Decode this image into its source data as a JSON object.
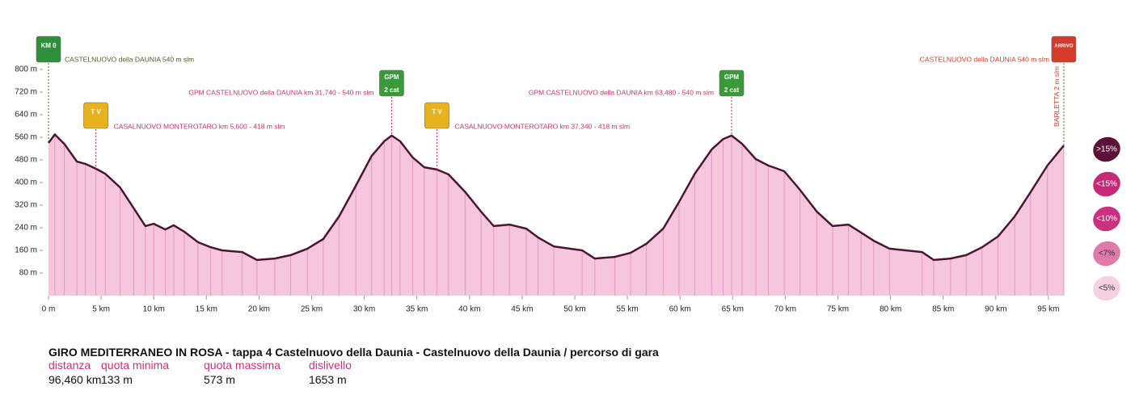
{
  "chart_data": {
    "type": "area",
    "x": [
      0,
      0.6,
      1.5,
      2.7,
      3.5,
      4.5,
      5.4,
      6.8,
      8.1,
      9.2,
      10,
      11.1,
      11.9,
      12.9,
      14.2,
      15.4,
      16.5,
      18.4,
      19.8,
      21.5,
      23,
      24.6,
      26.1,
      27.6,
      29.2,
      30.7,
      31.9,
      32.6,
      33.4,
      34.6,
      35.7,
      36.9,
      38,
      39.6,
      41.1,
      42.3,
      43.8,
      45.4,
      46.5,
      48,
      50.7,
      51.9,
      53.8,
      55.3,
      56.8,
      58.4,
      59.9,
      61.4,
      63,
      64.1,
      64.9,
      65.9,
      67.2,
      68.4,
      69.9,
      71.4,
      73,
      74.5,
      76,
      77.2,
      78.4,
      79.9,
      83,
      84.1,
      85.7,
      87.2,
      88.7,
      90.2,
      91.8,
      93.3,
      94.9,
      96.46
    ],
    "values": [
      540,
      570,
      537,
      474,
      466,
      449,
      431,
      383,
      309,
      246,
      254,
      234,
      249,
      226,
      189,
      171,
      160,
      154,
      126,
      131,
      143,
      166,
      200,
      280,
      389,
      494,
      546,
      566,
      546,
      489,
      454,
      446,
      429,
      366,
      297,
      246,
      251,
      237,
      206,
      174,
      160,
      131,
      137,
      151,
      183,
      237,
      331,
      431,
      517,
      554,
      566,
      537,
      483,
      460,
      440,
      374,
      297,
      246,
      251,
      223,
      194,
      166,
      154,
      126,
      131,
      143,
      171,
      209,
      280,
      366,
      460,
      531
    ],
    "fill": "#f5c6dc",
    "line_color": "#4a1632",
    "xlim": [
      0,
      96.46
    ],
    "ylim": [
      0,
      800
    ],
    "xticks": [
      {
        "value": 0,
        "label": "0 m"
      },
      {
        "value": 5,
        "label": "5 km"
      },
      {
        "value": 10,
        "label": "10 km"
      },
      {
        "value": 15,
        "label": "15 km"
      },
      {
        "value": 20,
        "label": "20 km"
      },
      {
        "value": 25,
        "label": "25 km"
      },
      {
        "value": 30,
        "label": "30 km"
      },
      {
        "value": 35,
        "label": "35 km"
      },
      {
        "value": 40,
        "label": "40 km"
      },
      {
        "value": 45,
        "label": "45 km"
      },
      {
        "value": 50,
        "label": "50 km"
      },
      {
        "value": 55,
        "label": "55 km"
      },
      {
        "value": 60,
        "label": "60 km"
      },
      {
        "value": 65,
        "label": "65 km"
      },
      {
        "value": 70,
        "label": "70 km"
      },
      {
        "value": 75,
        "label": "75 km"
      },
      {
        "value": 80,
        "label": "80 km"
      },
      {
        "value": 85,
        "label": "85 km"
      },
      {
        "value": 90,
        "label": "90 km"
      },
      {
        "value": 95,
        "label": "95 km"
      }
    ],
    "yticks": [
      {
        "value": 80,
        "label": "80 m"
      },
      {
        "value": 160,
        "label": "160 m"
      },
      {
        "value": 240,
        "label": "240 m"
      },
      {
        "value": 320,
        "label": "320 m"
      },
      {
        "value": 400,
        "label": "400 m"
      },
      {
        "value": 480,
        "label": "480 m"
      },
      {
        "value": 560,
        "label": "560 m"
      },
      {
        "value": 640,
        "label": "640 m"
      },
      {
        "value": 720,
        "label": "720 m"
      },
      {
        "value": 800,
        "label": "800 m"
      }
    ],
    "annotations": [
      {
        "kind": "start",
        "x": 0,
        "badge": "KM 0",
        "badge_color": "#2f8f3a",
        "text": "CASTELNUOVO della DAUNIA 540 m slm",
        "color": "#4d5a2a"
      },
      {
        "kind": "sprint",
        "x": 4.5,
        "badge": "T V",
        "badge_color": "#e6b31e",
        "text": "CASALNUOVO MONTEROTARO km 5,600 - 418 m slm",
        "color": "#d0306a"
      },
      {
        "kind": "gpm",
        "x": 32.6,
        "badge": "GPM",
        "badge2": "2 cat",
        "badge_color": "#3a9a3a",
        "text": "GPM CASTELNUOVO della DAUNIA km 31,740 - 540 m slm",
        "color": "#d0306a"
      },
      {
        "kind": "sprint",
        "x": 36.9,
        "badge": "T V",
        "badge_color": "#e6b31e",
        "text": "CASALNUOVO MONTEROTARO km 37,340 - 418 m slm",
        "color": "#d0306a"
      },
      {
        "kind": "gpm",
        "x": 64.9,
        "badge": "GPM",
        "badge2": "2 cat",
        "badge_color": "#3a9a3a",
        "text": "GPM CASTELNUOVO della DAUNIA km 63,480 - 540 m slm",
        "color": "#d0306a"
      },
      {
        "kind": "finish",
        "x": 96.46,
        "badge": "ARRIVO",
        "badge_color": "#d63a2a",
        "text": "CASTELNUOVO della DAUNIA 540 m slm",
        "color": "#d63a2a",
        "vertical_text": "BARLETTA 2 m slm"
      }
    ],
    "legend": [
      {
        "label": ">15%",
        "color": "#5a1238"
      },
      {
        "label": "<15%",
        "color": "#c42a78"
      },
      {
        "label": "<10%",
        "color": "#c9307f"
      },
      {
        "label": "<7%",
        "color": "#e07aad"
      },
      {
        "label": "<5%",
        "color": "#f6cfe1"
      }
    ]
  },
  "info": {
    "title": "GIRO MEDITERRANEO IN ROSA - tappa 4 Castelnuovo della Daunia - Castelnuovo della Daunia / percorso di gara",
    "labels": [
      "distanza",
      "quota minima",
      "quota massima",
      "dislivello"
    ],
    "values": [
      "96,460 km",
      "133 m",
      "573 m",
      "1653 m"
    ]
  }
}
